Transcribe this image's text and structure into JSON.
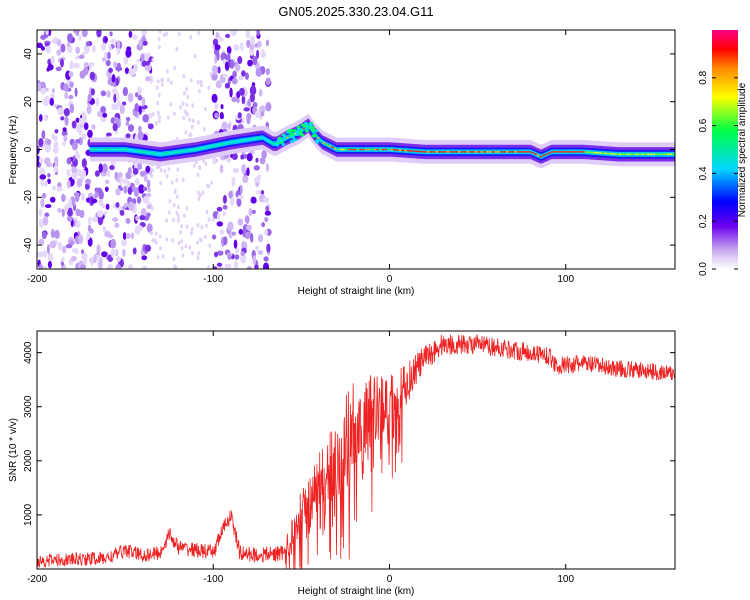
{
  "title": "GN05.2025.330.23.04.G11",
  "chart_data": [
    {
      "type": "heatmap",
      "name": "spectrogram",
      "xlabel": "Height of straight line (km)",
      "ylabel": "Frequency (Hz)",
      "xlim": [
        -200,
        162
      ],
      "ylim": [
        -50,
        50
      ],
      "xticks": [
        -200,
        -100,
        0,
        100
      ],
      "yticks": [
        -40,
        -20,
        0,
        20,
        40
      ],
      "ridge": {
        "x": [
          -170,
          -150,
          -130,
          -110,
          -90,
          -72,
          -65,
          -58,
          -52,
          -46,
          -42,
          -38,
          -30,
          -20,
          -10,
          0,
          20,
          40,
          60,
          80,
          86,
          92,
          110,
          130,
          162
        ],
        "y": [
          0,
          0,
          -2,
          0,
          3,
          5,
          2,
          5,
          7,
          10,
          6,
          3,
          0,
          0,
          0,
          0,
          -1,
          -1,
          -1,
          -1,
          -3,
          -1,
          -1,
          -2,
          -2
        ]
      },
      "noise_regions": [
        [
          -200,
          -135
        ],
        [
          -100,
          -68
        ]
      ],
      "colorbar": {
        "label": "Normalized spectral amplitude",
        "ticks": [
          "0.0",
          "0.2",
          "0.4",
          "0.6",
          "0.8"
        ],
        "range": [
          0,
          1
        ]
      }
    },
    {
      "type": "line",
      "name": "snr",
      "xlabel": "Height of straight line (km)",
      "ylabel": "SNR (10 * v/v)",
      "xlim": [
        -200,
        162
      ],
      "ylim": [
        0,
        4400
      ],
      "xticks": [
        -200,
        -100,
        0,
        100
      ],
      "yticks": [
        1000,
        2000,
        3000,
        4000
      ],
      "color": "#ee2222",
      "envelope": {
        "x": [
          -200,
          -160,
          -150,
          -140,
          -130,
          -125,
          -120,
          -110,
          -100,
          -95,
          -90,
          -85,
          -75,
          -60,
          -52,
          -45,
          -35,
          -25,
          -15,
          -5,
          5,
          15,
          22,
          30,
          40,
          50,
          70,
          90,
          95,
          110,
          130,
          150,
          162
        ],
        "y": [
          150,
          200,
          350,
          250,
          300,
          650,
          400,
          350,
          300,
          700,
          1000,
          300,
          250,
          300,
          900,
          1250,
          1700,
          2400,
          2800,
          3000,
          3200,
          3700,
          3950,
          4150,
          4150,
          4150,
          4050,
          3950,
          3750,
          3800,
          3700,
          3650,
          3600
        ]
      },
      "noise_amp": {
        "x": [
          -200,
          -60,
          -50,
          -40,
          -20,
          0,
          20,
          40,
          200
        ],
        "y": [
          120,
          150,
          450,
          700,
          900,
          550,
          250,
          180,
          150
        ]
      }
    }
  ]
}
